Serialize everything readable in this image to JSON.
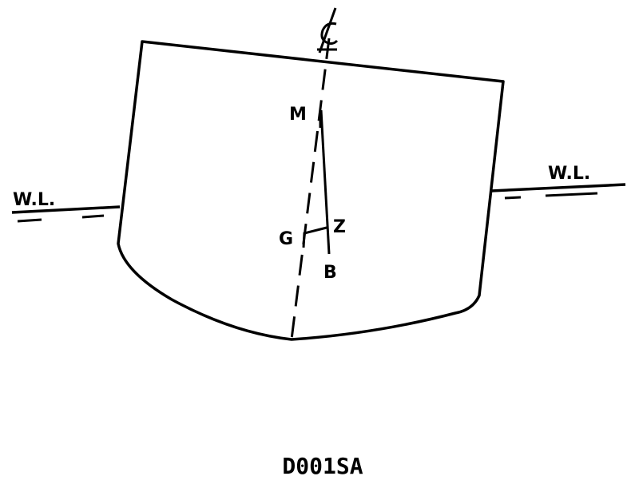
{
  "diagram": {
    "labels": {
      "waterline_left": "W.L.",
      "waterline_right": "W.L.",
      "metacenter": "M",
      "center_of_gravity": "G",
      "righting_arm_point": "Z",
      "center_of_buoyancy": "B",
      "centerline": "℄"
    },
    "figure_id": "D001SA",
    "colors": {
      "ink": "#000000",
      "background": "#ffffff"
    }
  }
}
